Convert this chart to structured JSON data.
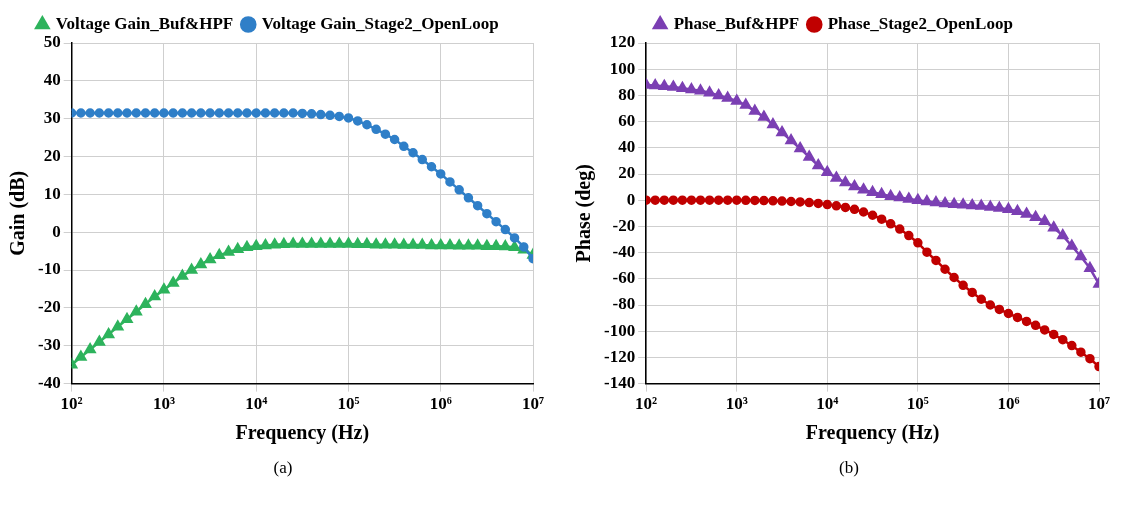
{
  "chart_data": [
    {
      "type": "line",
      "xlabel": "Frequency (Hz)",
      "ylabel": "Gain (dB)",
      "log": "x",
      "grid": true,
      "legend": "top",
      "annotations": [
        "(a)"
      ],
      "x": [
        100,
        125.9,
        158.5,
        199.5,
        251.2,
        316.2,
        398.1,
        501.2,
        631,
        794.3,
        1000,
        1259,
        1585,
        1995,
        2512,
        3162,
        3981,
        5012,
        6310,
        7943,
        10000,
        12590,
        15850,
        19950,
        25120,
        31620,
        39810,
        50120,
        63100,
        79430,
        100000,
        125900,
        158500,
        199500,
        251200,
        316200,
        398100,
        501200,
        631000,
        794300,
        1000000,
        1259000,
        1585000,
        1995000,
        2512000,
        3162000,
        3981000,
        5012000,
        6310000,
        7943000,
        10000000
      ],
      "xlim": [
        100,
        10000000
      ],
      "xticks": [
        {
          "value": 100,
          "label": "10²"
        },
        {
          "value": 1000,
          "label": "10³"
        },
        {
          "value": 10000,
          "label": "10⁴"
        },
        {
          "value": 100000,
          "label": "10⁵"
        },
        {
          "value": 1000000,
          "label": "10⁶"
        },
        {
          "value": 10000000,
          "label": "10⁷"
        }
      ],
      "ylim": [
        -40,
        50
      ],
      "yticks": [
        -40,
        -30,
        -20,
        -10,
        0,
        10,
        20,
        30,
        40,
        50
      ],
      "series": [
        {
          "name": "Voltage Gain_Buf&HPF",
          "color": "#2db35c",
          "marker": "triangle",
          "values": [
            -35,
            -33,
            -31,
            -29,
            -27,
            -25,
            -23,
            -21,
            -19,
            -17,
            -15.2,
            -13.4,
            -11.6,
            -10,
            -8.5,
            -7.2,
            -6.1,
            -5.2,
            -4.5,
            -4,
            -3.7,
            -3.5,
            -3.3,
            -3.2,
            -3.1,
            -3.1,
            -3.1,
            -3.1,
            -3.1,
            -3.1,
            -3.1,
            -3.2,
            -3.2,
            -3.3,
            -3.3,
            -3.3,
            -3.4,
            -3.4,
            -3.4,
            -3.5,
            -3.5,
            -3.5,
            -3.6,
            -3.6,
            -3.6,
            -3.7,
            -3.7,
            -3.8,
            -4,
            -4.6,
            -6
          ]
        },
        {
          "name": "Voltage Gain_Stage2_OpenLoop",
          "color": "#2f7fc8",
          "marker": "circle",
          "values": [
            31.5,
            31.5,
            31.5,
            31.5,
            31.5,
            31.5,
            31.5,
            31.5,
            31.5,
            31.5,
            31.5,
            31.5,
            31.5,
            31.5,
            31.5,
            31.5,
            31.5,
            31.5,
            31.5,
            31.5,
            31.5,
            31.5,
            31.5,
            31.5,
            31.5,
            31.4,
            31.3,
            31.1,
            30.9,
            30.6,
            30.2,
            29.4,
            28.4,
            27.2,
            25.9,
            24.5,
            22.7,
            21,
            19.2,
            17.3,
            15.4,
            13.3,
            11.2,
            9.1,
            7,
            4.9,
            2.8,
            0.7,
            -1.5,
            -3.9,
            -7
          ]
        }
      ]
    },
    {
      "type": "line",
      "xlabel": "Frequency (Hz)",
      "ylabel": "Phase (deg)",
      "log": "x",
      "grid": true,
      "legend": "top",
      "annotations": [
        "(b)"
      ],
      "x": [
        100,
        125.9,
        158.5,
        199.5,
        251.2,
        316.2,
        398.1,
        501.2,
        631,
        794.3,
        1000,
        1259,
        1585,
        1995,
        2512,
        3162,
        3981,
        5012,
        6310,
        7943,
        10000,
        12590,
        15850,
        19950,
        25120,
        31620,
        39810,
        50120,
        63100,
        79430,
        100000,
        125900,
        158500,
        199500,
        251200,
        316200,
        398100,
        501200,
        631000,
        794300,
        1000000,
        1259000,
        1585000,
        1995000,
        2512000,
        3162000,
        3981000,
        5012000,
        6310000,
        7943000,
        10000000
      ],
      "xlim": [
        100,
        10000000
      ],
      "xticks": [
        {
          "value": 100,
          "label": "10²"
        },
        {
          "value": 1000,
          "label": "10³"
        },
        {
          "value": 10000,
          "label": "10⁴"
        },
        {
          "value": 100000,
          "label": "10⁵"
        },
        {
          "value": 1000000,
          "label": "10⁶"
        },
        {
          "value": 10000000,
          "label": "10⁷"
        }
      ],
      "ylim": [
        -140,
        120
      ],
      "yticks": [
        -140,
        -120,
        -100,
        -80,
        -60,
        -40,
        -20,
        0,
        20,
        40,
        60,
        80,
        100,
        120
      ],
      "series": [
        {
          "name": "Phase_Buf&HPF",
          "color": "#7b3fb3",
          "marker": "triangle",
          "values": [
            88,
            87.5,
            87,
            86.5,
            85.5,
            84.5,
            83.5,
            82,
            80,
            78,
            75.8,
            72.6,
            68,
            63.6,
            57.7,
            51.7,
            45.5,
            39.5,
            33,
            26.5,
            21.3,
            17,
            13.5,
            10.5,
            8,
            6,
            4.5,
            3,
            2,
            1,
            0,
            -1,
            -1.8,
            -2.5,
            -3,
            -3.5,
            -4,
            -4.5,
            -5.2,
            -6,
            -7,
            -8.5,
            -10.5,
            -13,
            -16,
            -21,
            -27,
            -35,
            -43,
            -52,
            -64
          ]
        },
        {
          "name": "Phase_Stage2_OpenLoop",
          "color": "#c00000",
          "marker": "circle",
          "values": [
            0,
            0,
            0,
            0,
            0,
            0,
            0,
            0,
            0,
            0,
            0,
            -0.1,
            -0.2,
            -0.3,
            -0.5,
            -0.7,
            -1,
            -1.3,
            -1.8,
            -2.5,
            -3.3,
            -4.3,
            -5.5,
            -7,
            -9,
            -11.5,
            -14.5,
            -18,
            -22,
            -27,
            -32.5,
            -39.7,
            -46,
            -52.7,
            -59,
            -65,
            -70.4,
            -75.6,
            -80,
            -83.4,
            -86.5,
            -89.5,
            -92.5,
            -95.5,
            -99,
            -102.5,
            -106.5,
            -111,
            -116,
            -121,
            -127
          ]
        }
      ]
    }
  ]
}
